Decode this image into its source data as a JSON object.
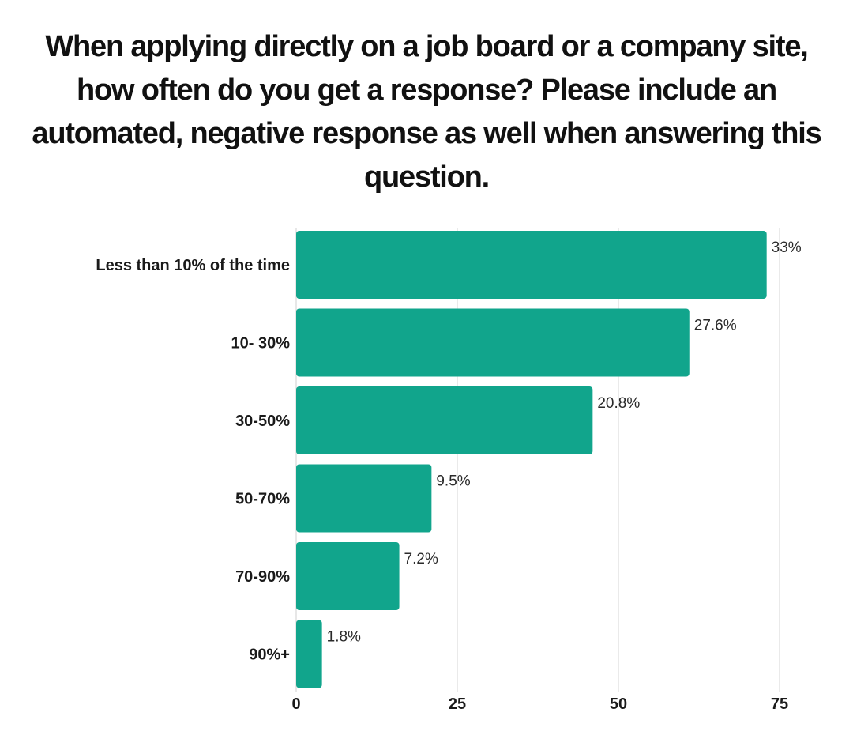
{
  "chart_data": {
    "type": "bar",
    "orientation": "horizontal",
    "title": "When applying directly on a job board or a company site, how often do you get a response? Please include an automated, negative response as well when answering this question.",
    "categories": [
      "Less than 10% of the time",
      "10- 30%",
      "30-50%",
      "50-70%",
      "70-90%",
      "90%+"
    ],
    "values": [
      73,
      61,
      46,
      21,
      16,
      4
    ],
    "value_labels": [
      "33%",
      "27.6%",
      "20.8%",
      "9.5%",
      "7.2%",
      "1.8%"
    ],
    "xlim": [
      0,
      75
    ],
    "xticks": [
      "0",
      "25",
      "50",
      "75"
    ],
    "xlabel": "",
    "ylabel": "",
    "grid": true,
    "bar_color": "#11a58c",
    "grid_color": "#e3e3e3"
  }
}
